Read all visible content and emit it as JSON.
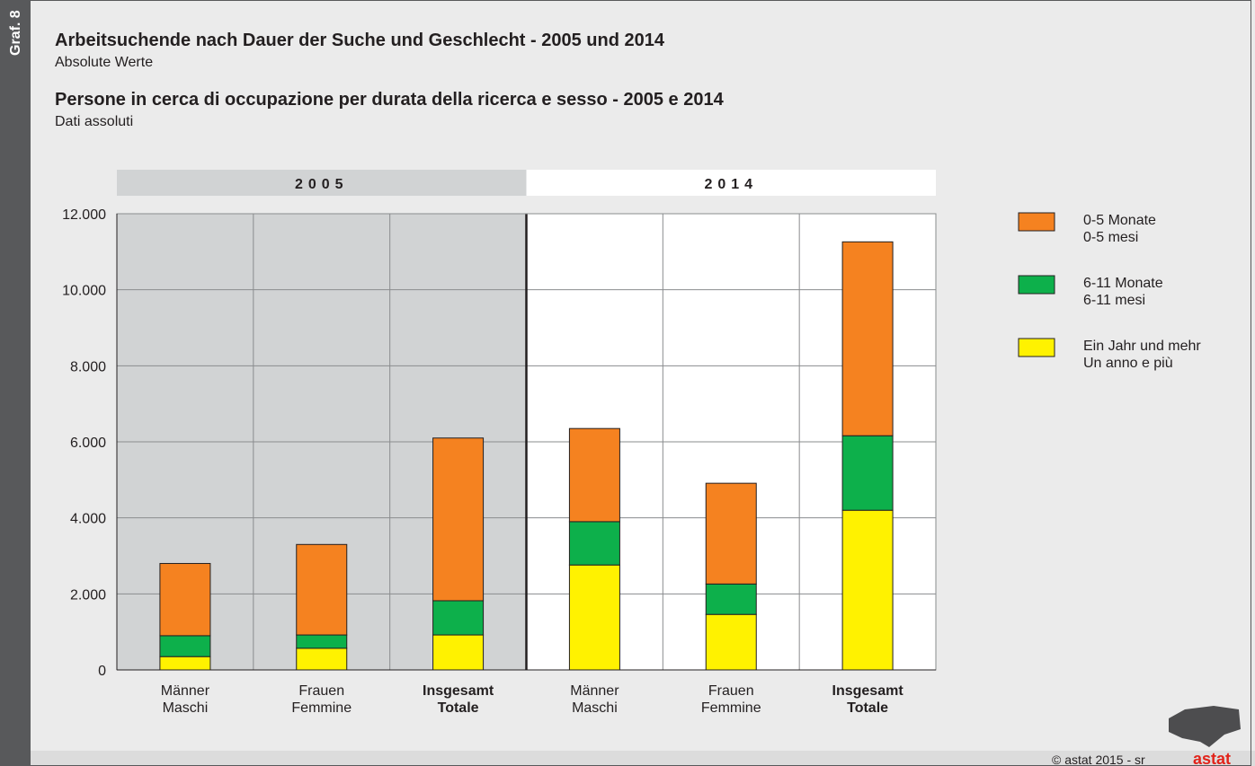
{
  "side_label": "Graf. 8",
  "title_de": "Arbeitsuchende nach Dauer der Suche und Geschlecht - 2005 und 2014",
  "subtitle_de": "Absolute Werte",
  "title_it": "Persone in cerca di occupazione per durata della ricerca e sesso - 2005 e 2014",
  "subtitle_it": "Dati assoluti",
  "copyright": "© astat 2015 - sr",
  "logo": "astat",
  "chart_data": {
    "type": "stacked-bar",
    "groups": [
      {
        "label": "2005",
        "color": "#d1d3d4"
      },
      {
        "label": "2014",
        "color": "#ffffff"
      }
    ],
    "categories": [
      [
        "Männer",
        "Maschi"
      ],
      [
        "Frauen",
        "Femmine"
      ],
      [
        "Insgesamt",
        "Totale"
      ],
      [
        "Männer",
        "Maschi"
      ],
      [
        "Frauen",
        "Femmine"
      ],
      [
        "Insgesamt",
        "Totale"
      ]
    ],
    "series": [
      {
        "name": [
          "0-5 Monate",
          "0-5 mesi"
        ],
        "color": "#f58220",
        "values": [
          1900,
          2380,
          4280,
          2450,
          2650,
          5100
        ]
      },
      {
        "name": [
          "6-11 Monate",
          "6-11 mesi"
        ],
        "color": "#0db04b",
        "values": [
          550,
          350,
          900,
          1140,
          800,
          1960
        ]
      },
      {
        "name": [
          "Ein Jahr und mehr",
          "Un anno e più"
        ],
        "color": "#fff200",
        "values": [
          350,
          570,
          920,
          2760,
          1460,
          4200
        ]
      }
    ],
    "ylim": [
      0,
      12000
    ],
    "yticks": [
      0,
      {
        "value": 2000,
        "label": "2.000"
      },
      {
        "value": 4000,
        "label": "4.000"
      },
      {
        "value": 6000,
        "label": "6.000"
      },
      {
        "value": 8000,
        "label": "8.000"
      },
      {
        "value": 10000,
        "label": "10.000"
      },
      {
        "value": 12000,
        "label": "12.000"
      }
    ],
    "grid": true
  }
}
